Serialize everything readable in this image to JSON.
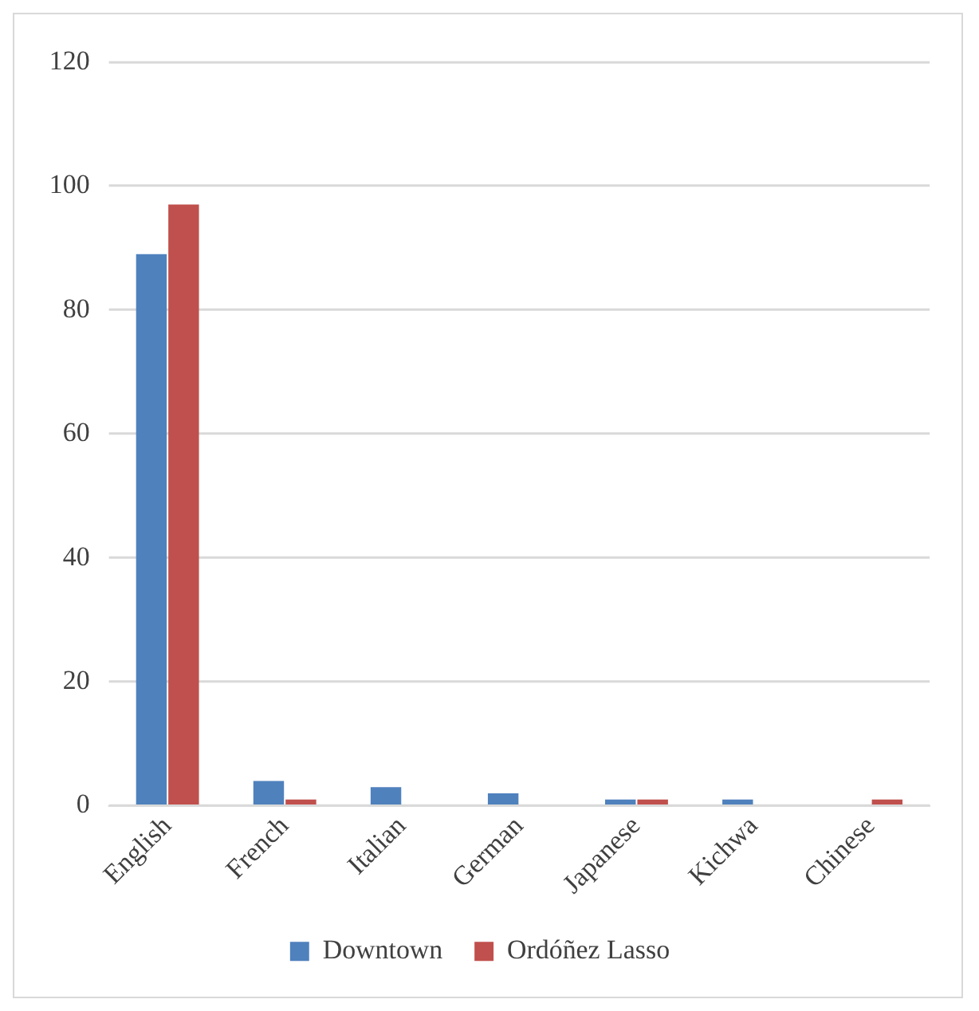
{
  "chart_data": {
    "type": "bar",
    "categories": [
      "English",
      "French",
      "Italian",
      "German",
      "Japanese",
      "Kichwa",
      "Chinese"
    ],
    "series": [
      {
        "name": "Downtown",
        "color": "#4f81bd",
        "values": [
          89,
          4,
          3,
          2,
          1,
          1,
          0
        ]
      },
      {
        "name": "Ordóñez Lasso",
        "color": "#c0504d",
        "values": [
          97,
          1,
          0,
          0,
          1,
          0,
          1
        ]
      }
    ],
    "ylim": [
      0,
      120
    ],
    "yticks": [
      0,
      20,
      40,
      60,
      80,
      100,
      120
    ],
    "grid": "y",
    "legend": "bottom"
  }
}
